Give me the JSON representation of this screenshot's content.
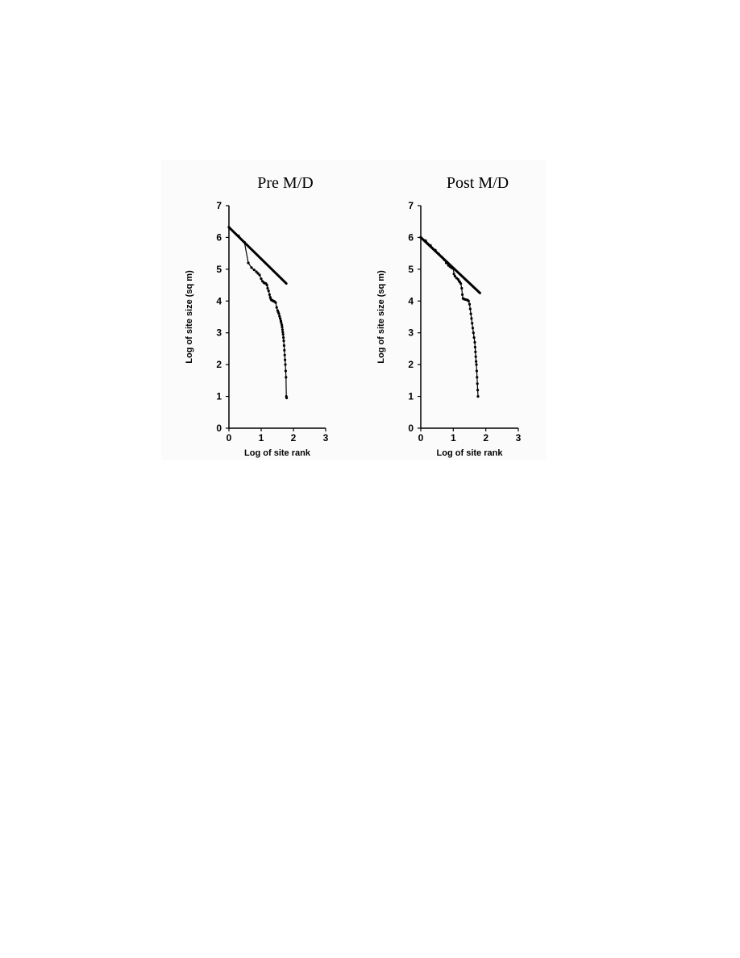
{
  "chart_data": [
    {
      "type": "line",
      "title": "Pre M/D",
      "xlabel": "Log of site rank",
      "ylabel": "Log of site size (sq m)",
      "xlim": [
        0,
        3
      ],
      "ylim": [
        0,
        7
      ],
      "xticks": [
        "0",
        "1",
        "2",
        "3"
      ],
      "yticks": [
        "0",
        "1",
        "2",
        "3",
        "4",
        "5",
        "6",
        "7"
      ],
      "grid": false,
      "legend": "none",
      "series": [
        {
          "style": "thick-line",
          "x": [
            0,
            1.78
          ],
          "y": [
            6.32,
            4.55
          ]
        },
        {
          "style": "line-with-markers",
          "x": [
            0,
            0.3,
            0.48,
            0.6,
            0.7,
            0.78,
            0.85,
            0.9,
            0.95,
            1.0,
            1.04,
            1.08,
            1.11,
            1.15,
            1.18,
            1.2,
            1.23,
            1.26,
            1.28,
            1.3,
            1.32,
            1.34,
            1.36,
            1.38,
            1.4,
            1.42,
            1.45,
            1.48,
            1.51,
            1.53,
            1.55,
            1.57,
            1.59,
            1.61,
            1.62,
            1.64,
            1.65,
            1.66,
            1.67,
            1.68,
            1.69,
            1.7,
            1.71,
            1.72,
            1.73,
            1.74,
            1.75,
            1.76,
            1.77,
            1.78,
            1.79
          ],
          "y": [
            6.32,
            6.05,
            5.85,
            5.2,
            5.05,
            4.98,
            4.92,
            4.87,
            4.82,
            4.7,
            4.62,
            4.58,
            4.56,
            4.55,
            4.5,
            4.4,
            4.32,
            4.2,
            4.12,
            4.06,
            4.03,
            4.02,
            4.01,
            4.0,
            3.99,
            3.98,
            3.95,
            3.8,
            3.7,
            3.65,
            3.6,
            3.52,
            3.45,
            3.38,
            3.32,
            3.25,
            3.18,
            3.1,
            3.02,
            2.95,
            2.85,
            2.75,
            2.6,
            2.45,
            2.3,
            2.15,
            2.0,
            1.8,
            1.6,
            1.0,
            0.95
          ]
        }
      ]
    },
    {
      "type": "line",
      "title": "Post M/D",
      "xlabel": "Log of site rank",
      "ylabel": "Log of site size (sq m)",
      "xlim": [
        0,
        3
      ],
      "ylim": [
        0,
        7
      ],
      "xticks": [
        "0",
        "1",
        "2",
        "3"
      ],
      "yticks": [
        "0",
        "1",
        "2",
        "3",
        "4",
        "5",
        "6",
        "7"
      ],
      "grid": false,
      "legend": "none",
      "series": [
        {
          "style": "thick-line",
          "x": [
            0,
            1.82
          ],
          "y": [
            6.0,
            4.25
          ]
        },
        {
          "style": "line-with-markers",
          "x": [
            0,
            0.15,
            0.3,
            0.45,
            0.55,
            0.65,
            0.72,
            0.78,
            0.85,
            0.9,
            0.95,
            1.0,
            1.02,
            1.05,
            1.1,
            1.15,
            1.18,
            1.2,
            1.23,
            1.26,
            1.28,
            1.3,
            1.33,
            1.36,
            1.4,
            1.44,
            1.47,
            1.5,
            1.52,
            1.54,
            1.56,
            1.58,
            1.6,
            1.62,
            1.64,
            1.66,
            1.67,
            1.68,
            1.69,
            1.7,
            1.71,
            1.72,
            1.73,
            1.74,
            1.75,
            1.76
          ],
          "y": [
            6.0,
            5.9,
            5.75,
            5.6,
            5.48,
            5.38,
            5.3,
            5.2,
            5.12,
            5.08,
            5.04,
            5.02,
            4.85,
            4.78,
            4.72,
            4.68,
            4.62,
            4.6,
            4.55,
            4.4,
            4.2,
            4.08,
            4.06,
            4.05,
            4.04,
            4.03,
            4.0,
            3.9,
            3.75,
            3.6,
            3.45,
            3.3,
            3.15,
            3.0,
            2.85,
            2.7,
            2.55,
            2.4,
            2.25,
            2.1,
            2.0,
            1.8,
            1.6,
            1.4,
            1.2,
            1.0
          ]
        }
      ]
    }
  ]
}
